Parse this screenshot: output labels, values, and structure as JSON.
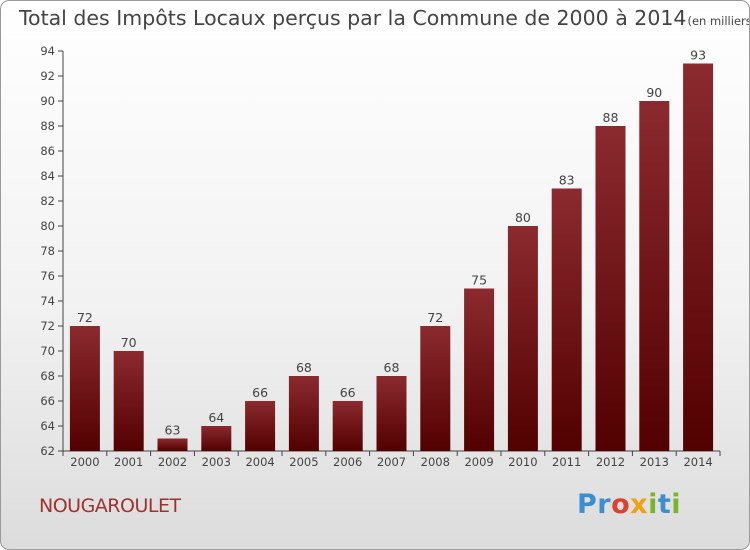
{
  "chart_data": {
    "type": "bar",
    "title": "Total des Impôts Locaux perçus par la Commune de 2000 à 2014",
    "unit_label": "(en milliers d'€)",
    "categories": [
      "2000",
      "2001",
      "2002",
      "2003",
      "2004",
      "2005",
      "2006",
      "2007",
      "2008",
      "2009",
      "2010",
      "2011",
      "2012",
      "2013",
      "2014"
    ],
    "values": [
      72,
      70,
      63,
      64,
      66,
      68,
      66,
      68,
      72,
      75,
      80,
      83,
      88,
      90,
      93
    ],
    "ylim": [
      62,
      94
    ],
    "yticks": [
      62,
      64,
      66,
      68,
      70,
      72,
      74,
      76,
      78,
      80,
      82,
      84,
      86,
      88,
      90,
      92,
      94
    ],
    "xlabel": "",
    "ylabel": "",
    "grid": false,
    "bar_color_top": "#8b2a2f",
    "bar_color_bottom": "#520000"
  },
  "commune": "NOUGAROULET",
  "logo": {
    "parts": [
      "Pr",
      "o",
      "x",
      "i",
      "t",
      "i"
    ],
    "colors": [
      "#3b8fd0",
      "#e0412d",
      "#f2a20f",
      "#7ab527",
      "#3b8fd0",
      "#7ab527"
    ]
  }
}
